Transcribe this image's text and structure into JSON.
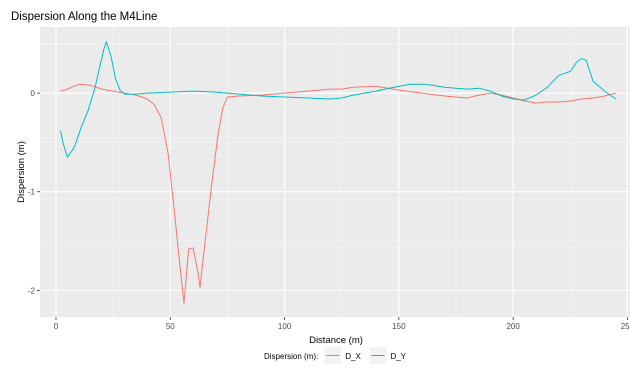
{
  "chart_data": {
    "type": "line",
    "title": "Dispersion Along the M4Line",
    "xlabel": "Distance (m)",
    "ylabel": "Dispersion (m)",
    "xlim": [
      -7,
      252
    ],
    "ylim": [
      -2.27,
      0.67
    ],
    "x_ticks": [
      0,
      50,
      100,
      150,
      200,
      250
    ],
    "y_ticks": [
      -2,
      -1,
      0
    ],
    "grid": true,
    "legend": {
      "position": "bottom",
      "title": "Dispersion (m):"
    },
    "series": [
      {
        "name": "D_X",
        "color": "#F8766D",
        "points": [
          [
            2,
            0.02
          ],
          [
            5,
            0.04
          ],
          [
            10,
            0.09
          ],
          [
            15,
            0.08
          ],
          [
            20,
            0.04
          ],
          [
            25,
            0.02
          ],
          [
            30,
            0.0
          ],
          [
            35,
            -0.02
          ],
          [
            40,
            -0.06
          ],
          [
            43,
            -0.12
          ],
          [
            46,
            -0.25
          ],
          [
            49,
            -0.6
          ],
          [
            52,
            -1.25
          ],
          [
            54,
            -1.7
          ],
          [
            56,
            -2.13
          ],
          [
            58,
            -1.58
          ],
          [
            60,
            -1.57
          ],
          [
            62,
            -1.8
          ],
          [
            63,
            -1.97
          ],
          [
            65,
            -1.55
          ],
          [
            68,
            -0.95
          ],
          [
            71,
            -0.4
          ],
          [
            73,
            -0.15
          ],
          [
            75,
            -0.04
          ],
          [
            80,
            -0.03
          ],
          [
            90,
            -0.02
          ],
          [
            100,
            0.0
          ],
          [
            110,
            0.02
          ],
          [
            120,
            0.04
          ],
          [
            125,
            0.04
          ],
          [
            130,
            0.06
          ],
          [
            140,
            0.07
          ],
          [
            150,
            0.03
          ],
          [
            160,
            0.0
          ],
          [
            170,
            -0.03
          ],
          [
            180,
            -0.05
          ],
          [
            185,
            -0.02
          ],
          [
            190,
            0.0
          ],
          [
            195,
            -0.02
          ],
          [
            200,
            -0.05
          ],
          [
            205,
            -0.08
          ],
          [
            210,
            -0.1
          ],
          [
            215,
            -0.09
          ],
          [
            220,
            -0.09
          ],
          [
            225,
            -0.08
          ],
          [
            230,
            -0.06
          ],
          [
            235,
            -0.05
          ],
          [
            240,
            -0.03
          ],
          [
            245,
            0.0
          ]
        ]
      },
      {
        "name": "D_Y",
        "color": "#00BFC4",
        "points": [
          [
            2,
            -0.38
          ],
          [
            3,
            -0.5
          ],
          [
            5,
            -0.65
          ],
          [
            8,
            -0.55
          ],
          [
            11,
            -0.35
          ],
          [
            14,
            -0.18
          ],
          [
            17,
            0.05
          ],
          [
            19,
            0.25
          ],
          [
            21,
            0.45
          ],
          [
            22,
            0.52
          ],
          [
            24,
            0.38
          ],
          [
            26,
            0.15
          ],
          [
            28,
            0.03
          ],
          [
            30,
            -0.01
          ],
          [
            35,
            -0.01
          ],
          [
            40,
            0.0
          ],
          [
            50,
            0.01
          ],
          [
            60,
            0.02
          ],
          [
            70,
            0.01
          ],
          [
            80,
            -0.01
          ],
          [
            90,
            -0.03
          ],
          [
            100,
            -0.04
          ],
          [
            110,
            -0.05
          ],
          [
            120,
            -0.06
          ],
          [
            125,
            -0.05
          ],
          [
            130,
            -0.02
          ],
          [
            140,
            0.02
          ],
          [
            150,
            0.07
          ],
          [
            155,
            0.09
          ],
          [
            160,
            0.09
          ],
          [
            165,
            0.08
          ],
          [
            170,
            0.06
          ],
          [
            175,
            0.05
          ],
          [
            180,
            0.04
          ],
          [
            185,
            0.05
          ],
          [
            190,
            0.02
          ],
          [
            195,
            -0.03
          ],
          [
            200,
            -0.06
          ],
          [
            205,
            -0.07
          ],
          [
            210,
            -0.02
          ],
          [
            215,
            0.06
          ],
          [
            220,
            0.18
          ],
          [
            225,
            0.22
          ],
          [
            228,
            0.32
          ],
          [
            230,
            0.35
          ],
          [
            232,
            0.33
          ],
          [
            235,
            0.12
          ],
          [
            240,
            0.02
          ],
          [
            243,
            -0.03
          ],
          [
            245,
            -0.06
          ]
        ]
      }
    ]
  }
}
